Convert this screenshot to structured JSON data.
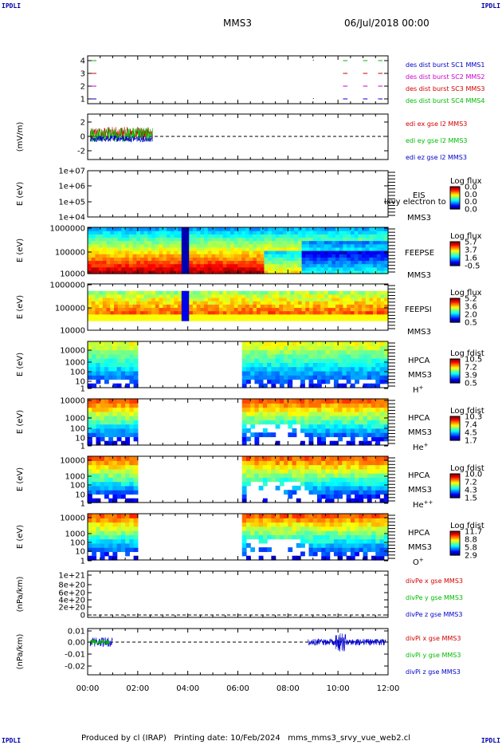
{
  "corner_tags": [
    "IPDLI",
    "IPDLI",
    "IPDLI",
    "IPDLI"
  ],
  "header": {
    "spacecraft": "MMS3",
    "datetime": "06/Jul/2018 00:00"
  },
  "footer": {
    "text": "Produced by cl (IRAP)   Printing date: 10/Feb/2024   mms_mms3_srvy_vue_web2.cl"
  },
  "colors": {
    "red": "#d40000",
    "green": "#00bb00",
    "blue": "#0000cc",
    "magenta": "#cc00cc"
  },
  "chart_data": {
    "type": "heatmap",
    "x_ticks": [
      "00:00",
      "02:00",
      "04:00",
      "06:00",
      "08:00",
      "10:00",
      "12:00"
    ],
    "xlim": [
      "00:00",
      "12:00"
    ],
    "panels": [
      {
        "id": "burst",
        "ylabel": "",
        "ytick_labels": [
          "4",
          "3",
          "2",
          "1"
        ],
        "legend": [
          {
            "text": "des dist burst SC1 MMS1",
            "color": "#0000cc"
          },
          {
            "text": "des dist burst SC2 MMS2",
            "color": "#cc00cc"
          },
          {
            "text": "des dist burst SC3 MMS3",
            "color": "#d40000"
          },
          {
            "text": "des dist burst SC4 MMS4",
            "color": "#00bb00"
          }
        ]
      },
      {
        "id": "edi",
        "ylabel": "(mV/m)",
        "ytick_labels": [
          "2",
          "0",
          "-2"
        ],
        "legend": [
          {
            "text": "edi ex gse l2 MMS3",
            "color": "#d40000"
          },
          {
            "text": "edi ey gse l2 MMS3",
            "color": "#00bb00"
          },
          {
            "text": "edi ez gse l2 MMS3",
            "color": "#0000cc"
          }
        ]
      },
      {
        "id": "eis",
        "ylabel": "E (eV)",
        "ytick_labels": [
          "1e+07",
          "1e+06",
          "1e+05",
          "1e+04"
        ],
        "labels": [
          "EIS",
          "lxvy electron to",
          "MMS3"
        ],
        "colorbar": {
          "title": "Log flux",
          "ticks": [
            "0.0",
            "0.0",
            "0.0",
            "0.0"
          ]
        }
      },
      {
        "id": "feepse",
        "ylabel": "E (eV)",
        "ytick_labels": [
          "1000000",
          "100000",
          "10000"
        ],
        "labels": [
          "FEEPSE",
          "MMS3"
        ],
        "colorbar": {
          "title": "Log flux",
          "ticks": [
            "5.7",
            "3.7",
            "1.6",
            "-0.5"
          ]
        }
      },
      {
        "id": "feepsi",
        "ylabel": "E (eV)",
        "ytick_labels": [
          "1000000",
          "100000",
          "10000"
        ],
        "labels": [
          "FEEPSI",
          "MMS3"
        ],
        "colorbar": {
          "title": "Log flux",
          "ticks": [
            "5.2",
            "3.6",
            "2.0",
            "0.5"
          ]
        }
      },
      {
        "id": "hpca_h",
        "ylabel": "E (eV)",
        "ytick_labels": [
          "10000",
          "1000",
          "100",
          "10",
          "1"
        ],
        "labels": [
          "HPCA",
          "MMS3"
        ],
        "species": {
          "base": "H",
          "sup": "+"
        },
        "colorbar": {
          "title": "Log fdist",
          "ticks": [
            "10.5",
            "7.2",
            "3.9",
            "0.5"
          ]
        }
      },
      {
        "id": "hpca_he",
        "ylabel": "E (eV)",
        "ytick_labels": [
          "10000",
          "1000",
          "100",
          "10",
          "1"
        ],
        "labels": [
          "HPCA",
          "MMS3"
        ],
        "species": {
          "base": "He",
          "sup": "+"
        },
        "colorbar": {
          "title": "Log fdist",
          "ticks": [
            "10.3",
            "7.4",
            "4.5",
            "1.7"
          ]
        }
      },
      {
        "id": "hpca_hepp",
        "ylabel": "E (eV)",
        "ytick_labels": [
          "10000",
          "1000",
          "100",
          "10",
          "1"
        ],
        "labels": [
          "HPCA",
          "MMS3"
        ],
        "species": {
          "base": "He",
          "sup": "++"
        },
        "colorbar": {
          "title": "Log fdist",
          "ticks": [
            "10.0",
            "7.2",
            "4.3",
            "1.5"
          ]
        }
      },
      {
        "id": "hpca_o",
        "ylabel": "E (eV)",
        "ytick_labels": [
          "10000",
          "1000",
          "100",
          "10",
          "1"
        ],
        "labels": [
          "HPCA",
          "MMS3"
        ],
        "species": {
          "base": "O",
          "sup": "+"
        },
        "colorbar": {
          "title": "Log fdist",
          "ticks": [
            "11.7",
            "8.8",
            "5.8",
            "2.9"
          ]
        }
      },
      {
        "id": "divpe",
        "ylabel": "(nPa/km)",
        "ytick_labels": [
          "1e+21",
          "8e+20",
          "6e+20",
          "4e+20",
          "2e+20",
          "0"
        ],
        "legend": [
          {
            "text": "divPe x gse MMS3",
            "color": "#d40000"
          },
          {
            "text": "divPe y gse MMS3",
            "color": "#00bb00"
          },
          {
            "text": "divPe z gse MMS3",
            "color": "#0000cc"
          }
        ]
      },
      {
        "id": "divpi",
        "ylabel": "(nPa/km)",
        "ytick_labels": [
          "0.01",
          "0.00",
          "-0.01",
          "-0.02"
        ],
        "legend": [
          {
            "text": "divPi x gse MMS3",
            "color": "#d40000"
          },
          {
            "text": "divPi y gse MMS3",
            "color": "#00bb00"
          },
          {
            "text": "divPi z gse MMS3",
            "color": "#0000cc"
          }
        ]
      }
    ]
  }
}
